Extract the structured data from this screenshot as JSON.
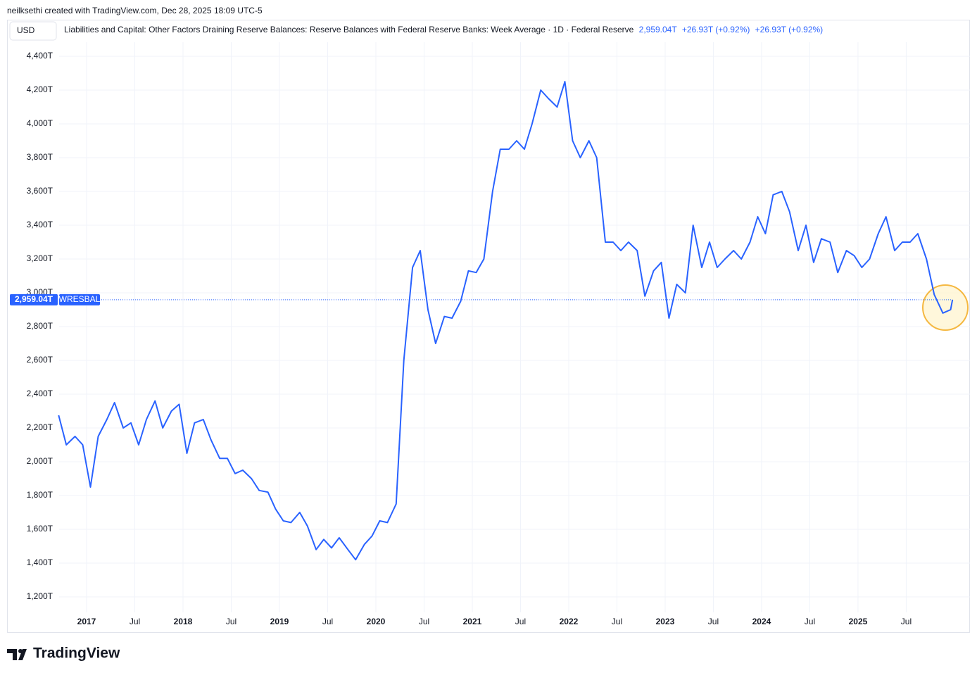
{
  "header": {
    "credit": "neilksethi created with TradingView.com, Dec 28, 2025 18:09 UTC-5",
    "currency": "USD",
    "logo": "TradingView"
  },
  "chart_data": {
    "type": "line",
    "title": "Liabilities and Capital: Other Factors Draining Reserve Balances: Reserve Balances with Federal Reserve Banks: Week Average",
    "interval": "1D",
    "source": "Federal Reserve",
    "last_price": {
      "value": 2959.04,
      "label": "2,959.04T"
    },
    "change": "+26.93T (+0.92%)",
    "change_2": "+26.93T (+0.92%)",
    "x": [
      2016.71,
      2016.79,
      2016.88,
      2016.96,
      2017.04,
      2017.12,
      2017.21,
      2017.29,
      2017.38,
      2017.46,
      2017.54,
      2017.62,
      2017.71,
      2017.79,
      2017.88,
      2017.96,
      2018.04,
      2018.12,
      2018.21,
      2018.29,
      2018.38,
      2018.46,
      2018.54,
      2018.62,
      2018.71,
      2018.79,
      2018.88,
      2018.96,
      2019.04,
      2019.12,
      2019.21,
      2019.29,
      2019.38,
      2019.46,
      2019.54,
      2019.62,
      2019.71,
      2019.79,
      2019.88,
      2019.96,
      2020.04,
      2020.12,
      2020.21,
      2020.29,
      2020.38,
      2020.46,
      2020.54,
      2020.62,
      2020.71,
      2020.79,
      2020.88,
      2020.96,
      2021.04,
      2021.12,
      2021.21,
      2021.29,
      2021.38,
      2021.46,
      2021.54,
      2021.62,
      2021.71,
      2021.79,
      2021.88,
      2021.96,
      2022.04,
      2022.12,
      2022.21,
      2022.29,
      2022.38,
      2022.46,
      2022.54,
      2022.62,
      2022.71,
      2022.79,
      2022.88,
      2022.96,
      2023.04,
      2023.12,
      2023.21,
      2023.29,
      2023.38,
      2023.46,
      2023.54,
      2023.62,
      2023.71,
      2023.79,
      2023.88,
      2023.96,
      2024.04,
      2024.12,
      2024.21,
      2024.29,
      2024.38,
      2024.46,
      2024.54,
      2024.62,
      2024.71,
      2024.79,
      2024.88,
      2024.96,
      2025.04,
      2025.12,
      2025.21,
      2025.29,
      2025.38,
      2025.46,
      2025.54,
      2025.62,
      2025.71,
      2025.79,
      2025.88,
      2025.96,
      2025.98
    ],
    "series": [
      {
        "name": "WRESBAL",
        "color": "#2962ff",
        "values": [
          2275,
          2100,
          2150,
          2100,
          1850,
          2150,
          2250,
          2350,
          2200,
          2230,
          2100,
          2250,
          2360,
          2200,
          2300,
          2340,
          2050,
          2230,
          2250,
          2130,
          2020,
          2020,
          1930,
          1950,
          1900,
          1830,
          1820,
          1720,
          1650,
          1640,
          1700,
          1620,
          1480,
          1540,
          1490,
          1550,
          1480,
          1420,
          1510,
          1560,
          1650,
          1640,
          1750,
          2600,
          3150,
          3250,
          2900,
          2700,
          2860,
          2850,
          2950,
          3130,
          3120,
          3200,
          3600,
          3850,
          3850,
          3900,
          3850,
          4000,
          4200,
          4150,
          4100,
          4250,
          3900,
          3800,
          3900,
          3800,
          3300,
          3300,
          3250,
          3300,
          3250,
          2980,
          3130,
          3180,
          2850,
          3050,
          3000,
          3400,
          3150,
          3300,
          3150,
          3200,
          3250,
          3200,
          3300,
          3450,
          3350,
          3580,
          3600,
          3480,
          3250,
          3400,
          3180,
          3320,
          3300,
          3120,
          3250,
          3220,
          3150,
          3200,
          3350,
          3450,
          3250,
          3300,
          3300,
          3350,
          3200,
          2990,
          2880,
          2900,
          2959.04
        ]
      }
    ],
    "xlim": [
      2016.175,
      2026.161
    ],
    "xticks": [
      {
        "value": 2017,
        "label": "2017"
      },
      {
        "value": 2017.5,
        "label": "Jul"
      },
      {
        "value": 2018,
        "label": "2018"
      },
      {
        "value": 2018.5,
        "label": "Jul"
      },
      {
        "value": 2019,
        "label": "2019"
      },
      {
        "value": 2019.5,
        "label": "Jul"
      },
      {
        "value": 2020,
        "label": "2020"
      },
      {
        "value": 2020.5,
        "label": "Jul"
      },
      {
        "value": 2021,
        "label": "2021"
      },
      {
        "value": 2021.5,
        "label": "Jul"
      },
      {
        "value": 2022,
        "label": "2022"
      },
      {
        "value": 2022.5,
        "label": "Jul"
      },
      {
        "value": 2023,
        "label": "2023"
      },
      {
        "value": 2023.5,
        "label": "Jul"
      },
      {
        "value": 2024,
        "label": "2024"
      },
      {
        "value": 2024.5,
        "label": "Jul"
      },
      {
        "value": 2025,
        "label": "2025"
      },
      {
        "value": 2025.5,
        "label": "Jul"
      }
    ],
    "ylim": [
      1108.3,
      4608.3
    ],
    "yticks": [
      {
        "value": 1200,
        "label": "1,200T"
      },
      {
        "value": 1400,
        "label": "1,400T"
      },
      {
        "value": 1600,
        "label": "1,600T"
      },
      {
        "value": 1800,
        "label": "1,800T"
      },
      {
        "value": 2000,
        "label": "2,000T"
      },
      {
        "value": 2200,
        "label": "2,200T"
      },
      {
        "value": 2400,
        "label": "2,400T"
      },
      {
        "value": 2600,
        "label": "2,600T"
      },
      {
        "value": 2800,
        "label": "2,800T"
      },
      {
        "value": 3000,
        "label": "3,000T"
      },
      {
        "value": 3200,
        "label": "3,200T"
      },
      {
        "value": 3400,
        "label": "3,400T"
      },
      {
        "value": 3600,
        "label": "3,600T"
      },
      {
        "value": 3800,
        "label": "3,800T"
      },
      {
        "value": 4000,
        "label": "4,000T"
      },
      {
        "value": 4200,
        "label": "4,200T"
      },
      {
        "value": 4400,
        "label": "4,400T"
      }
    ],
    "grid": true
  }
}
